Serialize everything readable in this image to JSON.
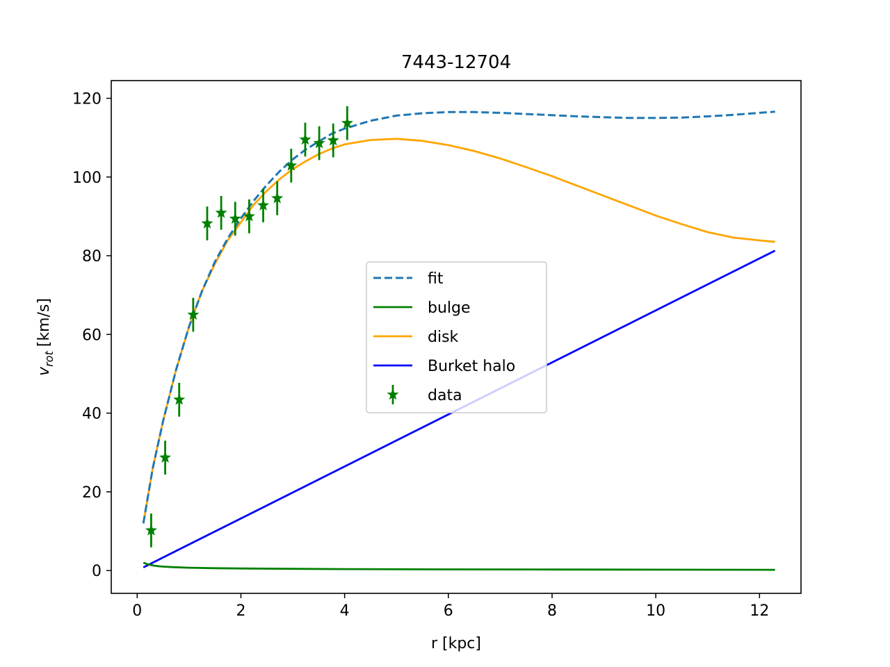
{
  "chart_data": {
    "type": "line",
    "title": "7443-12704",
    "xlabel": "r [kpc]",
    "ylabel_main": "v",
    "ylabel_sub": "rot",
    "ylabel_unit": "[km/s]",
    "xlim": [
      -0.5,
      12.8
    ],
    "ylim": [
      -5.8,
      124.5
    ],
    "xticks": [
      0,
      2,
      4,
      6,
      8,
      10,
      12
    ],
    "yticks": [
      0,
      20,
      40,
      60,
      80,
      100,
      120
    ],
    "grid": false,
    "legend_position": "center",
    "series": [
      {
        "name": "fit",
        "style": "dashed",
        "color": "#1f77b4",
        "x": [
          0.12,
          0.3,
          0.5,
          0.75,
          1.0,
          1.25,
          1.5,
          1.75,
          2.0,
          2.25,
          2.5,
          2.75,
          3.0,
          3.25,
          3.5,
          3.75,
          4.0,
          4.5,
          5.0,
          5.5,
          6.0,
          6.5,
          7.0,
          7.5,
          8.0,
          8.5,
          9.0,
          9.5,
          10.0,
          10.5,
          11.0,
          11.5,
          12.0,
          12.3
        ],
        "y": [
          12,
          26,
          38,
          51,
          62,
          71,
          78.5,
          84.5,
          89.5,
          94,
          98,
          101.5,
          104.5,
          107,
          109,
          111,
          112.3,
          114.3,
          115.6,
          116.2,
          116.5,
          116.5,
          116.3,
          116.0,
          115.7,
          115.4,
          115.2,
          115.0,
          115.0,
          115.1,
          115.4,
          115.8,
          116.3,
          116.6
        ]
      },
      {
        "name": "bulge",
        "style": "solid",
        "color": "#008000",
        "x": [
          0.12,
          0.2,
          0.3,
          0.4,
          0.5,
          0.7,
          1.0,
          1.5,
          2.0,
          3.0,
          4.0,
          6.0,
          8.0,
          10.0,
          12.3
        ],
        "y": [
          2.0,
          1.6,
          1.3,
          1.1,
          1.0,
          0.85,
          0.72,
          0.6,
          0.52,
          0.43,
          0.37,
          0.3,
          0.25,
          0.22,
          0.19
        ]
      },
      {
        "name": "disk",
        "style": "solid",
        "color": "#ffa500",
        "x": [
          0.12,
          0.3,
          0.5,
          0.75,
          1.0,
          1.25,
          1.5,
          1.75,
          2.0,
          2.25,
          2.5,
          2.75,
          3.0,
          3.25,
          3.5,
          3.75,
          4.0,
          4.5,
          5.0,
          5.5,
          6.0,
          6.5,
          7.0,
          7.5,
          8.0,
          8.5,
          9.0,
          9.5,
          10.0,
          10.5,
          11.0,
          11.5,
          12.0,
          12.3
        ],
        "y": [
          12,
          26,
          38,
          51,
          62,
          71,
          78,
          84,
          88.5,
          93,
          96.5,
          99.5,
          102,
          104,
          105.8,
          107.2,
          108.3,
          109.4,
          109.7,
          109.2,
          108.1,
          106.6,
          104.7,
          102.5,
          100.2,
          97.7,
          95.2,
          92.7,
          90.2,
          88.0,
          86.0,
          84.6,
          83.9,
          83.5
        ]
      },
      {
        "name": "Burket halo",
        "style": "solid",
        "color": "#0000ff",
        "x": [
          0.12,
          12.3
        ],
        "y": [
          0.8,
          81.3
        ]
      }
    ],
    "data_series": {
      "name": "data",
      "color": "#008000",
      "marker": "star",
      "x": [
        0.27,
        0.54,
        0.81,
        1.08,
        1.35,
        1.62,
        1.89,
        2.16,
        2.43,
        2.7,
        2.97,
        3.24,
        3.51,
        3.78,
        4.05
      ],
      "y": [
        10.2,
        28.7,
        43.4,
        65.0,
        88.2,
        90.9,
        89.4,
        90.0,
        92.8,
        94.6,
        102.9,
        109.5,
        108.6,
        109.3,
        113.7
      ],
      "err": [
        4.3,
        4.3,
        4.3,
        4.3,
        4.3,
        4.3,
        4.3,
        4.3,
        4.3,
        4.3,
        4.3,
        4.3,
        4.3,
        4.3,
        4.3
      ]
    }
  }
}
